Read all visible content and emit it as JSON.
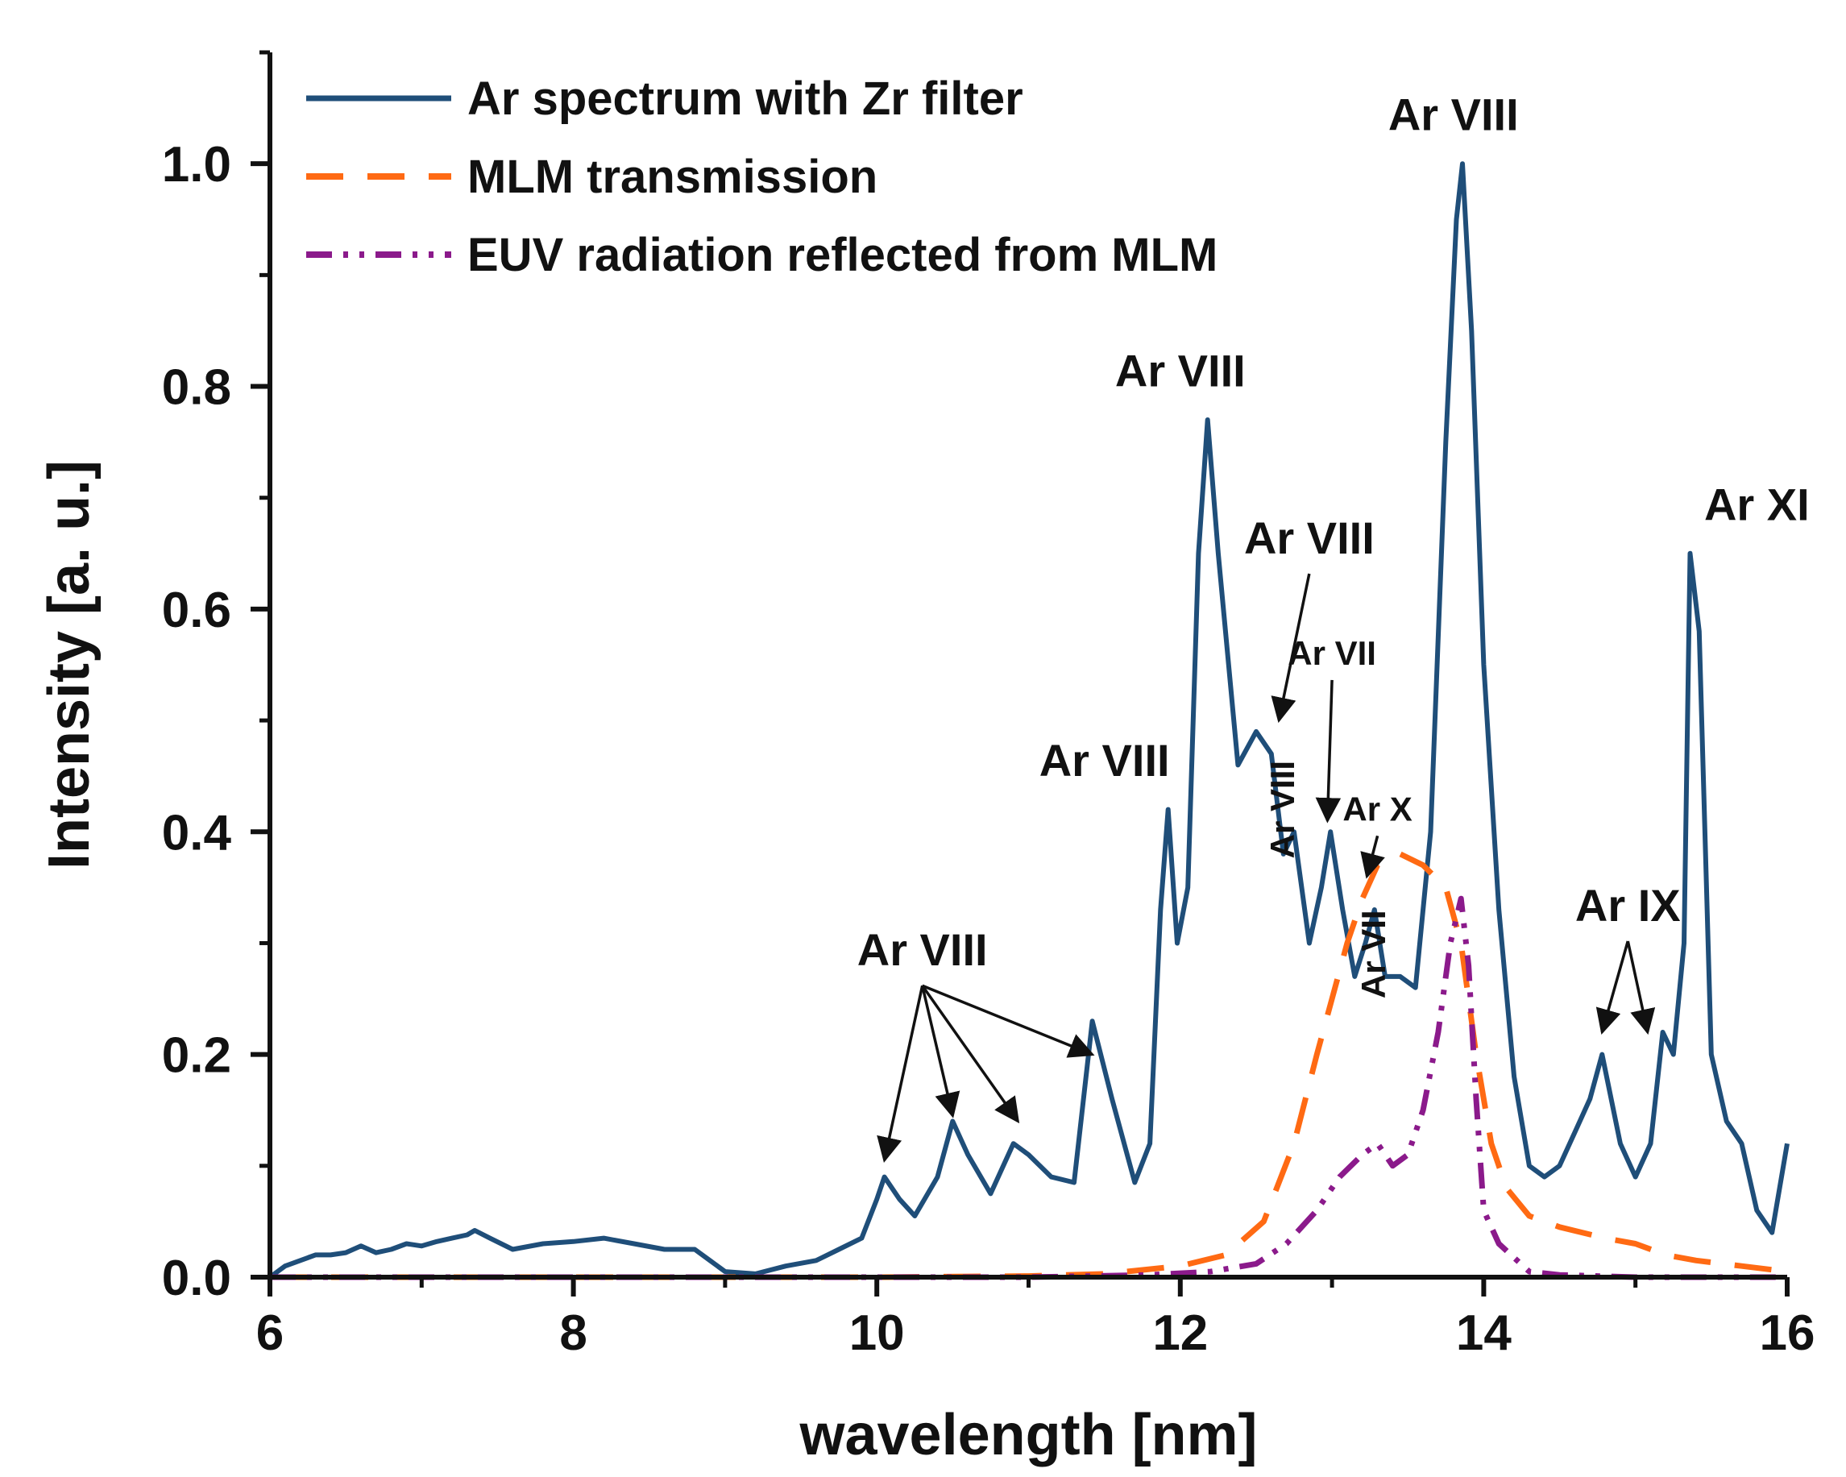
{
  "chart_data": {
    "type": "line",
    "title": "",
    "xlabel": "wavelength [nm]",
    "ylabel": "Intensity [a. u.]",
    "xlim": [
      6,
      16
    ],
    "ylim": [
      0,
      1.1
    ],
    "x_ticks": [
      6,
      8,
      10,
      12,
      14,
      16
    ],
    "x_tick_labels": [
      "6",
      "8",
      "10",
      "12",
      "14",
      "16"
    ],
    "y_ticks": [
      0.0,
      0.2,
      0.4,
      0.6,
      0.8,
      1.0
    ],
    "y_tick_labels": [
      "0.0",
      "0.2",
      "0.4",
      "0.6",
      "0.8",
      "1.0"
    ],
    "grid": false,
    "legend_position": "top-left",
    "series": [
      {
        "name": "Ar spectrum with Zr filter",
        "color": "#1f4e79",
        "style": "solid",
        "x": [
          6.0,
          6.1,
          6.2,
          6.3,
          6.4,
          6.5,
          6.6,
          6.7,
          6.8,
          6.9,
          7.0,
          7.1,
          7.2,
          7.3,
          7.35,
          7.45,
          7.6,
          7.8,
          8.0,
          8.2,
          8.4,
          8.6,
          8.8,
          8.9,
          9.0,
          9.2,
          9.4,
          9.6,
          9.75,
          9.9,
          10.0,
          10.05,
          10.15,
          10.25,
          10.4,
          10.5,
          10.6,
          10.75,
          10.9,
          11.0,
          11.15,
          11.3,
          11.42,
          11.55,
          11.7,
          11.8,
          11.87,
          11.92,
          11.98,
          12.05,
          12.12,
          12.18,
          12.25,
          12.38,
          12.5,
          12.6,
          12.68,
          12.75,
          12.85,
          12.93,
          12.99,
          13.07,
          13.15,
          13.22,
          13.28,
          13.35,
          13.45,
          13.55,
          13.65,
          13.75,
          13.82,
          13.86,
          13.92,
          14.0,
          14.1,
          14.2,
          14.3,
          14.4,
          14.5,
          14.6,
          14.7,
          14.78,
          14.9,
          15.0,
          15.1,
          15.18,
          15.25,
          15.32,
          15.36,
          15.42,
          15.5,
          15.6,
          15.7,
          15.8,
          15.9,
          16.0
        ],
        "values": [
          0.0,
          0.01,
          0.015,
          0.02,
          0.02,
          0.022,
          0.028,
          0.022,
          0.025,
          0.03,
          0.028,
          0.032,
          0.035,
          0.038,
          0.042,
          0.035,
          0.025,
          0.03,
          0.032,
          0.035,
          0.03,
          0.025,
          0.025,
          0.015,
          0.005,
          0.003,
          0.01,
          0.015,
          0.025,
          0.035,
          0.07,
          0.09,
          0.07,
          0.055,
          0.09,
          0.14,
          0.11,
          0.075,
          0.12,
          0.11,
          0.09,
          0.085,
          0.23,
          0.16,
          0.085,
          0.12,
          0.33,
          0.42,
          0.3,
          0.35,
          0.65,
          0.77,
          0.65,
          0.46,
          0.49,
          0.47,
          0.38,
          0.4,
          0.3,
          0.35,
          0.4,
          0.33,
          0.27,
          0.3,
          0.33,
          0.27,
          0.27,
          0.26,
          0.4,
          0.75,
          0.95,
          1.0,
          0.85,
          0.55,
          0.33,
          0.18,
          0.1,
          0.09,
          0.1,
          0.13,
          0.16,
          0.2,
          0.12,
          0.09,
          0.12,
          0.22,
          0.2,
          0.3,
          0.65,
          0.58,
          0.2,
          0.14,
          0.12,
          0.06,
          0.04,
          0.12
        ]
      },
      {
        "name": "MLM transmission",
        "color": "#ff6a13",
        "style": "dashed",
        "x": [
          6.0,
          8.0,
          10.0,
          11.0,
          11.5,
          12.0,
          12.3,
          12.55,
          12.75,
          12.9,
          13.0,
          13.1,
          13.2,
          13.3,
          13.45,
          13.6,
          13.75,
          13.85,
          13.95,
          14.05,
          14.15,
          14.3,
          14.5,
          14.8,
          15.0,
          15.2,
          15.4,
          15.7,
          16.0
        ],
        "values": [
          0.0,
          0.0,
          0.0,
          0.001,
          0.003,
          0.01,
          0.02,
          0.05,
          0.12,
          0.2,
          0.25,
          0.3,
          0.34,
          0.37,
          0.38,
          0.37,
          0.35,
          0.3,
          0.2,
          0.12,
          0.08,
          0.055,
          0.045,
          0.035,
          0.03,
          0.02,
          0.015,
          0.01,
          0.005
        ]
      },
      {
        "name": "EUV radiation reflected from MLM",
        "color": "#8b1a8b",
        "style": "dash-dot-dot",
        "x": [
          6.0,
          8.0,
          10.0,
          11.0,
          11.8,
          12.2,
          12.5,
          12.7,
          12.9,
          13.05,
          13.2,
          13.3,
          13.4,
          13.5,
          13.6,
          13.7,
          13.78,
          13.85,
          13.9,
          13.95,
          14.0,
          14.1,
          14.3,
          14.5,
          15.0,
          15.5,
          16.0
        ],
        "values": [
          0.0,
          0.0,
          0.0,
          0.0,
          0.002,
          0.005,
          0.012,
          0.03,
          0.06,
          0.09,
          0.11,
          0.12,
          0.1,
          0.11,
          0.15,
          0.22,
          0.3,
          0.34,
          0.28,
          0.16,
          0.06,
          0.03,
          0.005,
          0.002,
          0.0,
          0.0,
          0.0
        ]
      }
    ],
    "annotations": [
      {
        "text": "Ar VIII",
        "x": 10.3,
        "y": 0.28,
        "size": "large",
        "arrows_to": [
          [
            10.05,
            0.105
          ],
          [
            10.5,
            0.145
          ],
          [
            10.93,
            0.14
          ],
          [
            11.42,
            0.2
          ]
        ]
      },
      {
        "text": "Ar VIII",
        "x": 11.5,
        "y": 0.45,
        "size": "large",
        "arrows_to": []
      },
      {
        "text": "Ar VIII",
        "x": 12.0,
        "y": 0.8,
        "size": "large",
        "arrows_to": []
      },
      {
        "text": "Ar VIII",
        "x": 12.85,
        "y": 0.65,
        "size": "large",
        "arrows_to": [
          [
            12.65,
            0.5
          ]
        ]
      },
      {
        "text": "Ar VIII",
        "x": 12.75,
        "y": 0.42,
        "size": "small",
        "rotated": true,
        "arrows_to": []
      },
      {
        "text": "Ar VII",
        "x": 13.0,
        "y": 0.55,
        "size": "small",
        "arrows_to": [
          [
            12.97,
            0.41
          ]
        ]
      },
      {
        "text": "Ar X",
        "x": 13.3,
        "y": 0.41,
        "size": "small",
        "arrows_to": [
          [
            13.23,
            0.36
          ]
        ]
      },
      {
        "text": "Ar VII",
        "x": 13.35,
        "y": 0.29,
        "size": "small",
        "rotated": true,
        "arrows_to": []
      },
      {
        "text": "Ar VIII",
        "x": 13.8,
        "y": 1.03,
        "size": "large",
        "arrows_to": []
      },
      {
        "text": "Ar IX",
        "x": 14.95,
        "y": 0.32,
        "size": "large",
        "arrows_to": [
          [
            14.78,
            0.22
          ],
          [
            15.08,
            0.22
          ]
        ]
      },
      {
        "text": "Ar XI",
        "x": 15.8,
        "y": 0.68,
        "size": "large",
        "arrows_to": []
      }
    ]
  }
}
